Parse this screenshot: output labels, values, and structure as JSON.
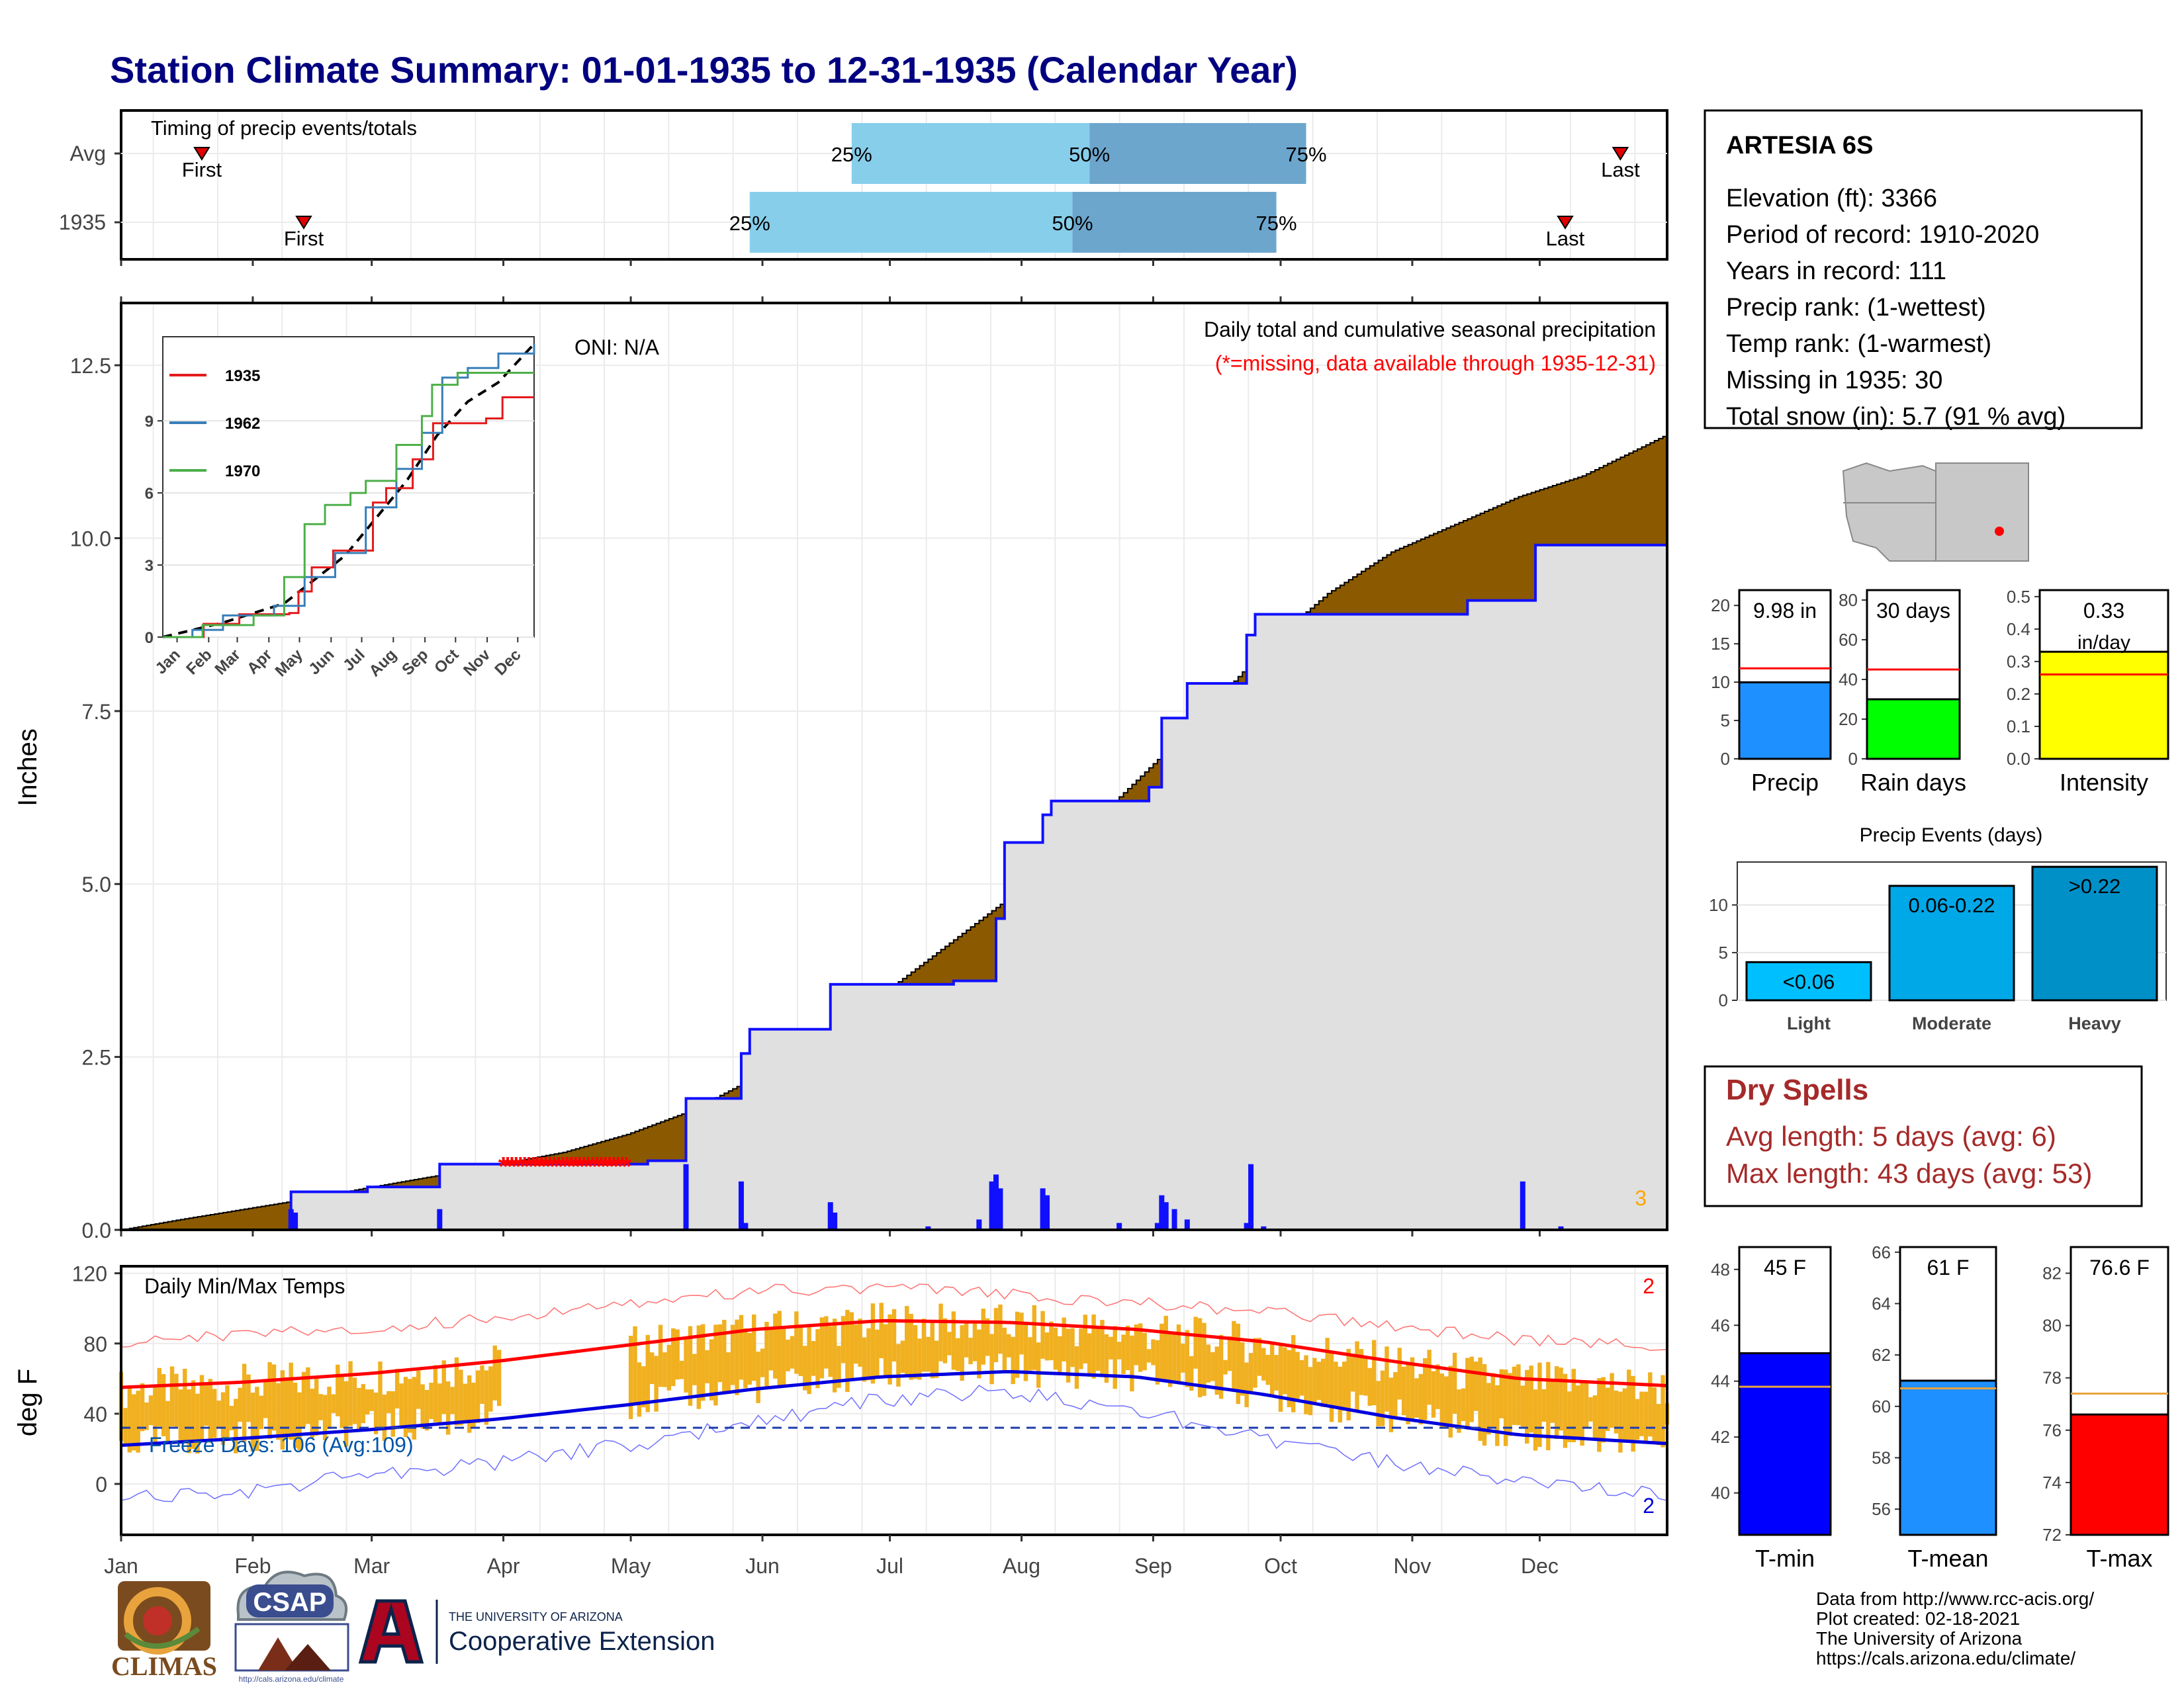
{
  "title": "Station Climate Summary: 01-01-1935 to 12-31-1935 (Calendar Year)",
  "months": [
    "Jan",
    "Feb",
    "Mar",
    "Apr",
    "May",
    "Jun",
    "Jul",
    "Aug",
    "Sep",
    "Oct",
    "Nov",
    "Dec"
  ],
  "colors": {
    "title": "#000080",
    "precip_fill": "#8B5A00",
    "precip_surplus": "#008000",
    "normal_fill": "#E0E0E0",
    "bar_blue": "#1010FF",
    "temp_bar": "#F0B020",
    "tmax_line": "#FF0000",
    "tmin_line": "#0000DD",
    "dry": "#A52A2A"
  },
  "timing": {
    "title": "Timing of precip events/totals",
    "rows": [
      {
        "label": "Avg",
        "first_doy": 20,
        "first_label": "First",
        "q25_doy": 173,
        "q50_doy": 229,
        "q75_doy": 280,
        "last_doy": 354,
        "last_label": "Last",
        "q25_label": "25%",
        "q50_label": "50%",
        "q75_label": "75%"
      },
      {
        "label": "1935",
        "first_doy": 44,
        "first_label": "First",
        "q25_doy": 149,
        "q50_doy": 225,
        "q75_doy": 273,
        "last_doy": 341,
        "last_label": "Last",
        "q25_label": "25%",
        "q50_label": "50%",
        "q75_label": "75%"
      }
    ]
  },
  "chart_data": [
    {
      "type": "area",
      "name": "precip",
      "title": "Daily total and cumulative seasonal precipitation",
      "subtitle": "(*=missing, data available through 1935-12-31)",
      "ylabel": "Inches",
      "oni": "ONI: N/A",
      "ylim": [
        0,
        12.5
      ],
      "yticks": [
        "0.0",
        "2.5",
        "5.0",
        "7.5",
        "10.0",
        "12.5"
      ],
      "xlim_doy": [
        1,
        365
      ],
      "normal_cumulative": {
        "doy": [
          1,
          15,
          30,
          45,
          60,
          75,
          90,
          105,
          120,
          135,
          150,
          165,
          180,
          195,
          210,
          225,
          240,
          255,
          270,
          285,
          300,
          315,
          330,
          345,
          365
        ],
        "inches": [
          0,
          0.15,
          0.3,
          0.45,
          0.62,
          0.78,
          0.95,
          1.12,
          1.38,
          1.72,
          2.2,
          2.7,
          3.4,
          4.1,
          4.8,
          5.6,
          6.5,
          7.4,
          8.4,
          9.2,
          9.8,
          10.2,
          10.6,
          10.9,
          11.5
        ]
      },
      "observed_cumulative": {
        "steps": [
          [
            1,
            0
          ],
          [
            41,
            0.55
          ],
          [
            59,
            0.62
          ],
          [
            76,
            0.95
          ],
          [
            125,
            1.0
          ],
          [
            134,
            1.9
          ],
          [
            147,
            2.55
          ],
          [
            149,
            2.9
          ],
          [
            164,
            2.9
          ],
          [
            168,
            3.55
          ],
          [
            197,
            3.6
          ],
          [
            207,
            4.5
          ],
          [
            209,
            5.6
          ],
          [
            218,
            6.0
          ],
          [
            220,
            6.2
          ],
          [
            243,
            6.4
          ],
          [
            246,
            7.4
          ],
          [
            252,
            7.9
          ],
          [
            266,
            8.6
          ],
          [
            268,
            8.9
          ],
          [
            318,
            9.1
          ],
          [
            334,
            9.9
          ],
          [
            365,
            9.98
          ]
        ]
      },
      "daily_bars": {
        "doy": [
          41,
          42,
          76,
          134,
          147,
          148,
          168,
          169,
          191,
          203,
          206,
          207,
          208,
          218,
          219,
          236,
          245,
          246,
          247,
          249,
          252,
          266,
          267,
          270,
          331,
          340
        ],
        "inches": [
          0.3,
          0.25,
          0.3,
          0.95,
          0.7,
          0.1,
          0.4,
          0.25,
          0.05,
          0.15,
          0.7,
          0.8,
          0.6,
          0.6,
          0.5,
          0.1,
          0.1,
          0.5,
          0.4,
          0.3,
          0.15,
          0.1,
          0.95,
          0.05,
          0.7,
          0.05
        ]
      },
      "missing_doy": [
        91,
        92,
        93,
        94,
        95,
        96,
        97,
        98,
        99,
        100,
        101,
        102,
        103,
        104,
        105,
        106,
        107,
        108,
        109,
        110,
        111,
        112,
        113,
        114,
        115,
        116,
        117,
        118,
        119,
        120
      ],
      "missing_marker": "*",
      "corner_label": "3",
      "inset": {
        "type": "line",
        "months": [
          "Jan",
          "Feb",
          "Mar",
          "Apr",
          "May",
          "Jun",
          "Jul",
          "Aug",
          "Sep",
          "Oct",
          "Nov",
          "Dec"
        ],
        "yticks": [
          "0",
          "3",
          "6",
          "9"
        ],
        "ylim": [
          0,
          12.5
        ],
        "series": [
          {
            "name": "1935",
            "color": "#E41A1C",
            "steps": [
              [
                1,
                0
              ],
              [
                41,
                0.55
              ],
              [
                76,
                0.95
              ],
              [
                125,
                1.0
              ],
              [
                134,
                1.9
              ],
              [
                147,
                2.9
              ],
              [
                168,
                3.6
              ],
              [
                207,
                5.6
              ],
              [
                220,
                6.2
              ],
              [
                246,
                7.4
              ],
              [
                266,
                8.9
              ],
              [
                318,
                9.1
              ],
              [
                334,
                9.98
              ],
              [
                365,
                9.98
              ]
            ]
          },
          {
            "name": "1962",
            "color": "#377EB8",
            "steps": [
              [
                1,
                0
              ],
              [
                30,
                0.3
              ],
              [
                60,
                0.9
              ],
              [
                110,
                1.3
              ],
              [
                140,
                2.5
              ],
              [
                170,
                3.5
              ],
              [
                200,
                5.4
              ],
              [
                230,
                7.0
              ],
              [
                255,
                8.5
              ],
              [
                275,
                10.8
              ],
              [
                300,
                11.2
              ],
              [
                330,
                11.8
              ],
              [
                365,
                12.2
              ]
            ]
          },
          {
            "name": "1970",
            "color": "#4DAF4A",
            "steps": [
              [
                1,
                0
              ],
              [
                40,
                0.5
              ],
              [
                90,
                0.9
              ],
              [
                120,
                2.5
              ],
              [
                140,
                4.7
              ],
              [
                160,
                5.5
              ],
              [
                185,
                6.0
              ],
              [
                200,
                6.5
              ],
              [
                230,
                8.0
              ],
              [
                255,
                9.2
              ],
              [
                265,
                10.5
              ],
              [
                290,
                11.0
              ],
              [
                320,
                11.0
              ],
              [
                365,
                11.0
              ]
            ]
          }
        ],
        "normal": [
          [
            1,
            0
          ],
          [
            60,
            0.6
          ],
          [
            120,
            1.4
          ],
          [
            180,
            3.4
          ],
          [
            240,
            6.5
          ],
          [
            270,
            8.4
          ],
          [
            300,
            9.8
          ],
          [
            330,
            10.6
          ],
          [
            365,
            12.2
          ]
        ]
      }
    },
    {
      "type": "bar",
      "name": "temps",
      "title": "Daily Min/Max Temps",
      "ylabel": "deg F",
      "ylim": [
        -20,
        120
      ],
      "yticks": [
        "0",
        "40",
        "80",
        "120"
      ],
      "freeze_label": "Freeze Days: 106 (Avg:109)",
      "freeze_line": 32,
      "top_right_label": "2",
      "bottom_right_label": "2",
      "normal_max_curve": {
        "doy": [
          1,
          30,
          60,
          90,
          120,
          150,
          180,
          210,
          240,
          270,
          300,
          330,
          365
        ],
        "degF": [
          55,
          58,
          63,
          70,
          79,
          88,
          93,
          92,
          88,
          81,
          70,
          60,
          56
        ]
      },
      "normal_min_curve": {
        "doy": [
          1,
          30,
          60,
          90,
          120,
          150,
          180,
          210,
          240,
          270,
          300,
          330,
          365
        ],
        "degF": [
          22,
          26,
          31,
          37,
          45,
          54,
          61,
          64,
          61,
          51,
          38,
          28,
          23
        ]
      },
      "record_max_curve": {
        "doy": [
          1,
          30,
          60,
          90,
          120,
          150,
          180,
          210,
          240,
          270,
          300,
          330,
          365
        ],
        "degF": [
          80,
          85,
          88,
          95,
          103,
          110,
          112,
          108,
          103,
          98,
          90,
          82,
          78
        ]
      },
      "record_min_curve": {
        "doy": [
          1,
          30,
          60,
          90,
          120,
          150,
          180,
          210,
          240,
          270,
          300,
          330,
          365
        ],
        "degF": [
          -8,
          -4,
          5,
          12,
          22,
          35,
          48,
          53,
          42,
          25,
          12,
          2,
          -5
        ]
      }
    },
    {
      "type": "bar",
      "name": "precip-summary",
      "panels": [
        {
          "label": "Precip",
          "value": 9.98,
          "value_label": "9.98 in",
          "avg": 11.8,
          "ylim": [
            0,
            22
          ],
          "yticks": [
            "0",
            "5",
            "10",
            "15",
            "20"
          ],
          "color": "#1E90FF"
        },
        {
          "label": "Rain days",
          "value": 30,
          "value_label": "30 days",
          "avg": 45,
          "ylim": [
            0,
            85
          ],
          "yticks": [
            "0",
            "20",
            "40",
            "60",
            "80"
          ],
          "color": "#00FF00"
        },
        {
          "label": "Intensity",
          "value": 0.33,
          "value_label": "0.33 in/day",
          "avg": 0.26,
          "ylim": [
            0,
            0.52
          ],
          "yticks": [
            "0.0",
            "0.1",
            "0.2",
            "0.3",
            "0.4",
            "0.5"
          ],
          "color": "#FFFF00"
        }
      ]
    },
    {
      "type": "bar",
      "name": "precip-events",
      "title": "Precip Events (days)",
      "categories": [
        "Light",
        "Moderate",
        "Heavy"
      ],
      "values": [
        4,
        12,
        14
      ],
      "bar_labels": [
        "<0.06",
        "0.06-0.22",
        ">0.22"
      ],
      "yticks": [
        "0",
        "5",
        "10"
      ],
      "ylim": [
        0,
        14.5
      ],
      "colors": [
        "#00BFFF",
        "#00A8E8",
        "#0090C8"
      ]
    },
    {
      "type": "bar",
      "name": "temp-summary",
      "panels": [
        {
          "label": "T-min",
          "value": 45,
          "value_label": "45 F",
          "avg": 43.8,
          "ylim": [
            38.5,
            48.8
          ],
          "yticks": [
            "40",
            "42",
            "44",
            "46",
            "48"
          ],
          "color": "#0000FF"
        },
        {
          "label": "T-mean",
          "value": 61,
          "value_label": "61 F",
          "avg": 60.7,
          "ylim": [
            55,
            66.2
          ],
          "yticks": [
            "56",
            "58",
            "60",
            "62",
            "64",
            "66"
          ],
          "color": "#1E90FF"
        },
        {
          "label": "T-max",
          "value": 76.6,
          "value_label": "76.6 F",
          "avg": 77.4,
          "ylim": [
            72,
            83
          ],
          "yticks": [
            "72",
            "74",
            "76",
            "78",
            "80",
            "82"
          ],
          "color": "#FF0000"
        }
      ]
    }
  ],
  "station": {
    "name": "ARTESIA 6S",
    "lines": [
      "Elevation (ft): 3366",
      "Period of record: 1910-2020",
      "Years in record: 111",
      "Precip rank:  (1-wettest)",
      "Temp rank:  (1-warmest)",
      "Missing in 1935: 30",
      "Total snow (in): 5.7 (91 % avg)"
    ]
  },
  "dry_spells": {
    "title": "Dry Spells",
    "avg_line": "Avg length: 5 days (avg: 6)",
    "max_line": "Max length: 43 days (avg: 53)"
  },
  "footer": {
    "lines": [
      "Data from http://www.rcc-acis.org/",
      "Plot created: 02-18-2021",
      "The University of Arizona",
      "https://cals.arizona.edu/climate/"
    ],
    "climas": "CLIMAS",
    "csap": "CSAP",
    "csap_url": "http://cals.arizona.edu/climate",
    "ua_small": "THE UNIVERSITY OF ARIZONA",
    "ua_big": "Cooperative Extension"
  }
}
